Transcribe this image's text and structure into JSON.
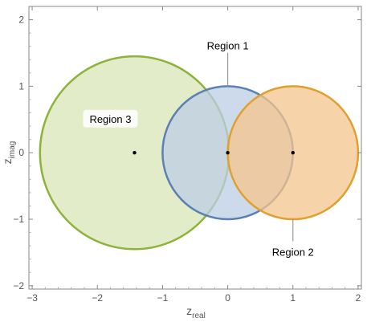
{
  "chart_data": {
    "type": "scatter",
    "xlabel": {
      "base": "z",
      "sub": "real"
    },
    "ylabel": {
      "base": "z",
      "sub": "imag"
    },
    "xlim": [
      -3.05,
      2.05
    ],
    "ylim": [
      -2.05,
      2.2
    ],
    "x_ticks": [
      -3,
      -2,
      -1,
      0,
      1,
      2
    ],
    "y_ticks": [
      -2,
      -1,
      0,
      1,
      2
    ],
    "x_tick_labels": [
      "−3",
      "−2",
      "−1",
      "0",
      "1",
      "2"
    ],
    "y_tick_labels": [
      "−2",
      "−1",
      "0",
      "1",
      "2"
    ],
    "grid": false,
    "circles": [
      {
        "name": "Region 3",
        "center": [
          -1.43,
          0
        ],
        "radius": 1.45,
        "fill": "#d8e6b6",
        "stroke": "#8db33a"
      },
      {
        "name": "Region 1",
        "center": [
          0,
          0
        ],
        "radius": 1.0,
        "fill": "#bccde6",
        "stroke": "#5b80b3"
      },
      {
        "name": "Region 2",
        "center": [
          1,
          0
        ],
        "radius": 1.0,
        "fill": "#f4c48c",
        "stroke": "#e0a030"
      }
    ],
    "points": [
      {
        "x": -1.43,
        "y": 0
      },
      {
        "x": 0,
        "y": 0
      },
      {
        "x": 1,
        "y": 0
      }
    ],
    "annotations": [
      {
        "text": "Region 1",
        "x": 0,
        "y": 1.6,
        "pointer_to": [
          0,
          1.0
        ],
        "boxed": false
      },
      {
        "text": "Region 2",
        "x": 1,
        "y": -1.5,
        "pointer_to": [
          1,
          -1.0
        ],
        "boxed": false
      },
      {
        "text": "Region 3",
        "x": -1.8,
        "y": 0.5,
        "pointer_to": null,
        "boxed": true
      }
    ]
  }
}
